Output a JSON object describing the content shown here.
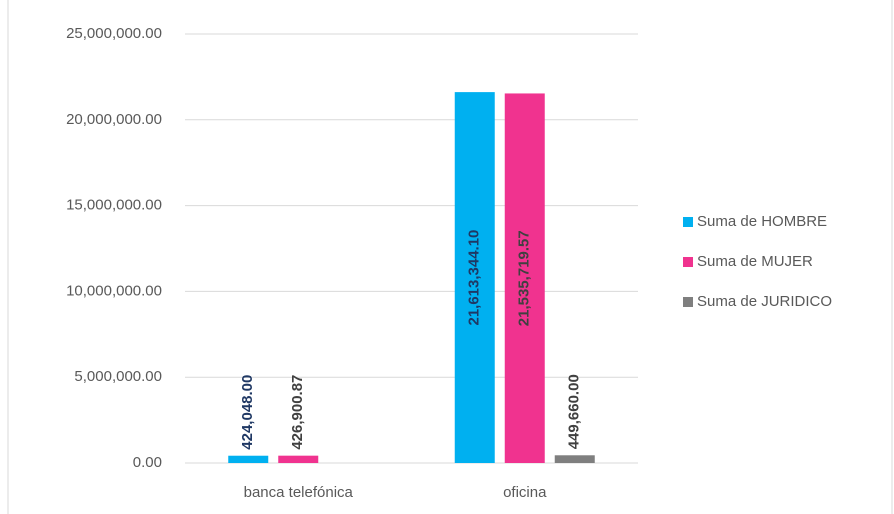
{
  "chart_data": {
    "type": "bar",
    "categories": [
      "banca telefónica",
      "oficina"
    ],
    "series": [
      {
        "name": "Suma de HOMBRE",
        "color": "#00b0f0",
        "values": [
          424048.0,
          21613344.1
        ],
        "value_labels": [
          "424,048.00",
          "21,613,344.10"
        ],
        "label_color": "#1f3864"
      },
      {
        "name": "Suma de MUJER",
        "color": "#f0338f",
        "values": [
          426900.87,
          21535719.57
        ],
        "value_labels": [
          "426,900.87",
          "21,535,719.57"
        ],
        "label_color": "#404040"
      },
      {
        "name": "Suma de JURIDICO",
        "color": "#7f7f7f",
        "values": [
          null,
          449660.0
        ],
        "value_labels": [
          null,
          "449,660.00"
        ],
        "label_color": "#404040"
      }
    ],
    "ylim": [
      0,
      25000000
    ],
    "yticks": [
      {
        "value": 0,
        "label": "0.00"
      },
      {
        "value": 5000000,
        "label": "5,000,000.00"
      },
      {
        "value": 10000000,
        "label": "10,000,000.00"
      },
      {
        "value": 15000000,
        "label": "15,000,000.00"
      },
      {
        "value": 20000000,
        "label": "20,000,000.00"
      },
      {
        "value": 25000000,
        "label": "25,000,000.00"
      }
    ],
    "grid": true,
    "legend": "right"
  }
}
